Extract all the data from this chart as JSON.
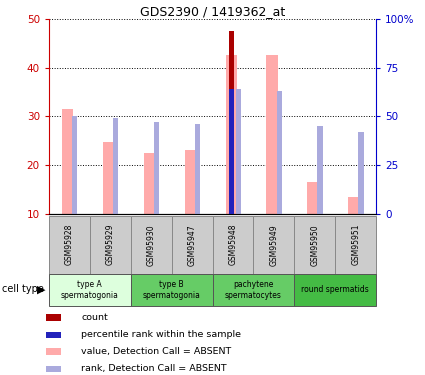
{
  "title": "GDS2390 / 1419362_at",
  "samples": [
    "GSM95928",
    "GSM95929",
    "GSM95930",
    "GSM95947",
    "GSM95948",
    "GSM95949",
    "GSM95950",
    "GSM95951"
  ],
  "value_absent": [
    31.5,
    24.8,
    22.5,
    23.0,
    42.5,
    42.5,
    16.5,
    13.5
  ],
  "rank_absent_pct": [
    50.0,
    49.0,
    47.0,
    46.0,
    64.0,
    63.0,
    45.0,
    42.0
  ],
  "count": [
    0,
    0,
    0,
    0,
    47.5,
    0,
    0,
    0
  ],
  "percentile_rank_pct": [
    0,
    0,
    0,
    0,
    64.0,
    0,
    0,
    0
  ],
  "ylim_left": [
    10,
    50
  ],
  "ylim_right": [
    0,
    100
  ],
  "yticks_left": [
    10,
    20,
    30,
    40,
    50
  ],
  "yticks_right": [
    0,
    25,
    50,
    75,
    100
  ],
  "yticklabels_right": [
    "0",
    "25",
    "50",
    "75",
    "100%"
  ],
  "left_axis_color": "#cc0000",
  "right_axis_color": "#0000cc",
  "bar_colors": {
    "count": "#aa0000",
    "percentile": "#2222bb",
    "value_absent": "#ffaaaa",
    "rank_absent": "#aaaadd"
  },
  "cell_colors": [
    "#ddffdd",
    "#66cc66",
    "#66cc66",
    "#44bb44"
  ],
  "cell_ranges": [
    [
      0,
      2
    ],
    [
      2,
      4
    ],
    [
      4,
      6
    ],
    [
      6,
      8
    ]
  ],
  "cell_labels": [
    "type A\nspermatogonia",
    "type B\nspermatogonia",
    "pachytene\nspermatocytes",
    "round spermatids"
  ],
  "legend_items": [
    {
      "label": "count",
      "color": "#aa0000"
    },
    {
      "label": "percentile rank within the sample",
      "color": "#2222bb"
    },
    {
      "label": "value, Detection Call = ABSENT",
      "color": "#ffaaaa"
    },
    {
      "label": "rank, Detection Call = ABSENT",
      "color": "#aaaadd"
    }
  ],
  "x_positions": [
    0,
    1,
    2,
    3,
    4,
    5,
    6,
    7
  ]
}
